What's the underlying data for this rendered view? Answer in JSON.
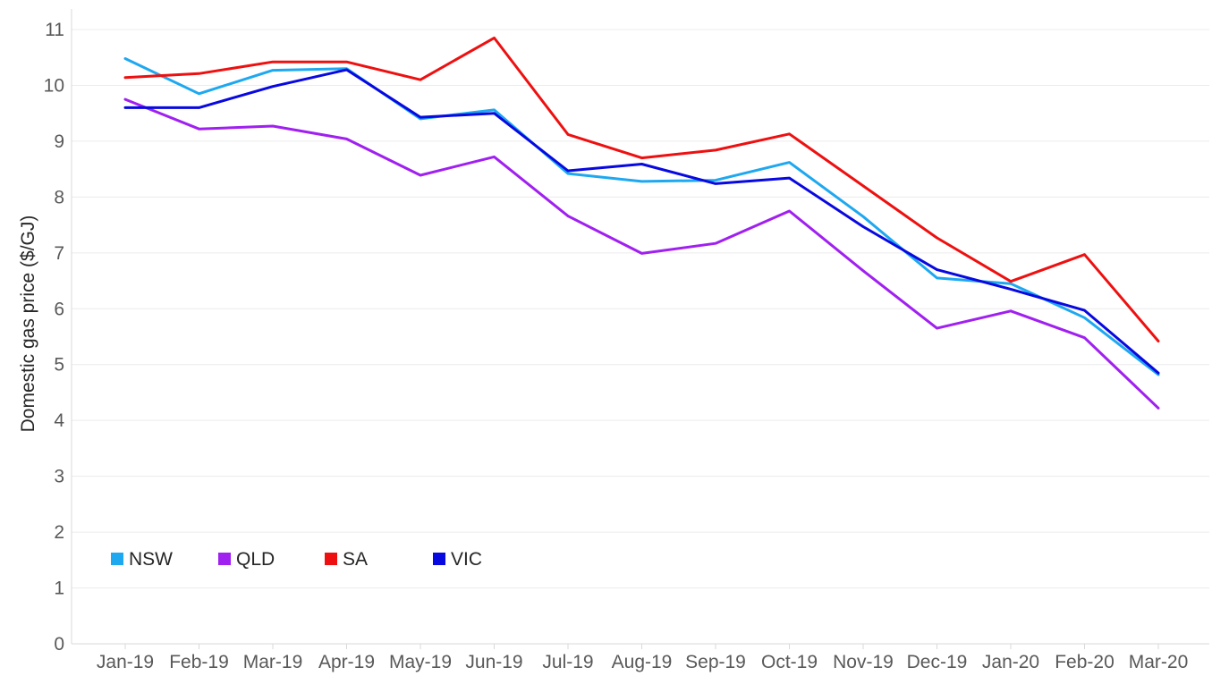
{
  "chart_data": {
    "type": "line",
    "title": "",
    "xlabel": "",
    "ylabel": "Domestic gas price ($/GJ)",
    "ylim": [
      0,
      11
    ],
    "yticks": [
      0,
      1,
      2,
      3,
      4,
      5,
      6,
      7,
      8,
      9,
      10,
      11
    ],
    "grid": true,
    "legend_position": "bottom-left",
    "categories": [
      "Jan-19",
      "Feb-19",
      "Mar-19",
      "Apr-19",
      "May-19",
      "Jun-19",
      "Jul-19",
      "Aug-19",
      "Sep-19",
      "Oct-19",
      "Nov-19",
      "Dec-19",
      "Jan-20",
      "Feb-20",
      "Mar-20"
    ],
    "series": [
      {
        "name": "NSW",
        "color": "#1ea8f0",
        "values": [
          10.48,
          9.85,
          10.27,
          10.3,
          9.4,
          9.56,
          8.42,
          8.28,
          8.3,
          8.62,
          7.65,
          6.55,
          6.45,
          5.84,
          4.82
        ]
      },
      {
        "name": "QLD",
        "color": "#a020f0",
        "values": [
          9.75,
          9.22,
          9.27,
          9.04,
          8.39,
          8.72,
          7.66,
          6.99,
          7.17,
          7.75,
          6.68,
          5.65,
          5.96,
          5.48,
          4.22
        ]
      },
      {
        "name": "SA",
        "color": "#ee1010",
        "values": [
          10.14,
          10.21,
          10.42,
          10.42,
          10.1,
          10.85,
          9.12,
          8.7,
          8.84,
          9.13,
          8.2,
          7.27,
          6.49,
          6.97,
          5.42
        ]
      },
      {
        "name": "VIC",
        "color": "#0808e0",
        "values": [
          9.6,
          9.6,
          9.98,
          10.28,
          9.43,
          9.5,
          8.47,
          8.59,
          8.24,
          8.34,
          7.47,
          6.7,
          6.35,
          5.97,
          4.85
        ]
      }
    ]
  }
}
